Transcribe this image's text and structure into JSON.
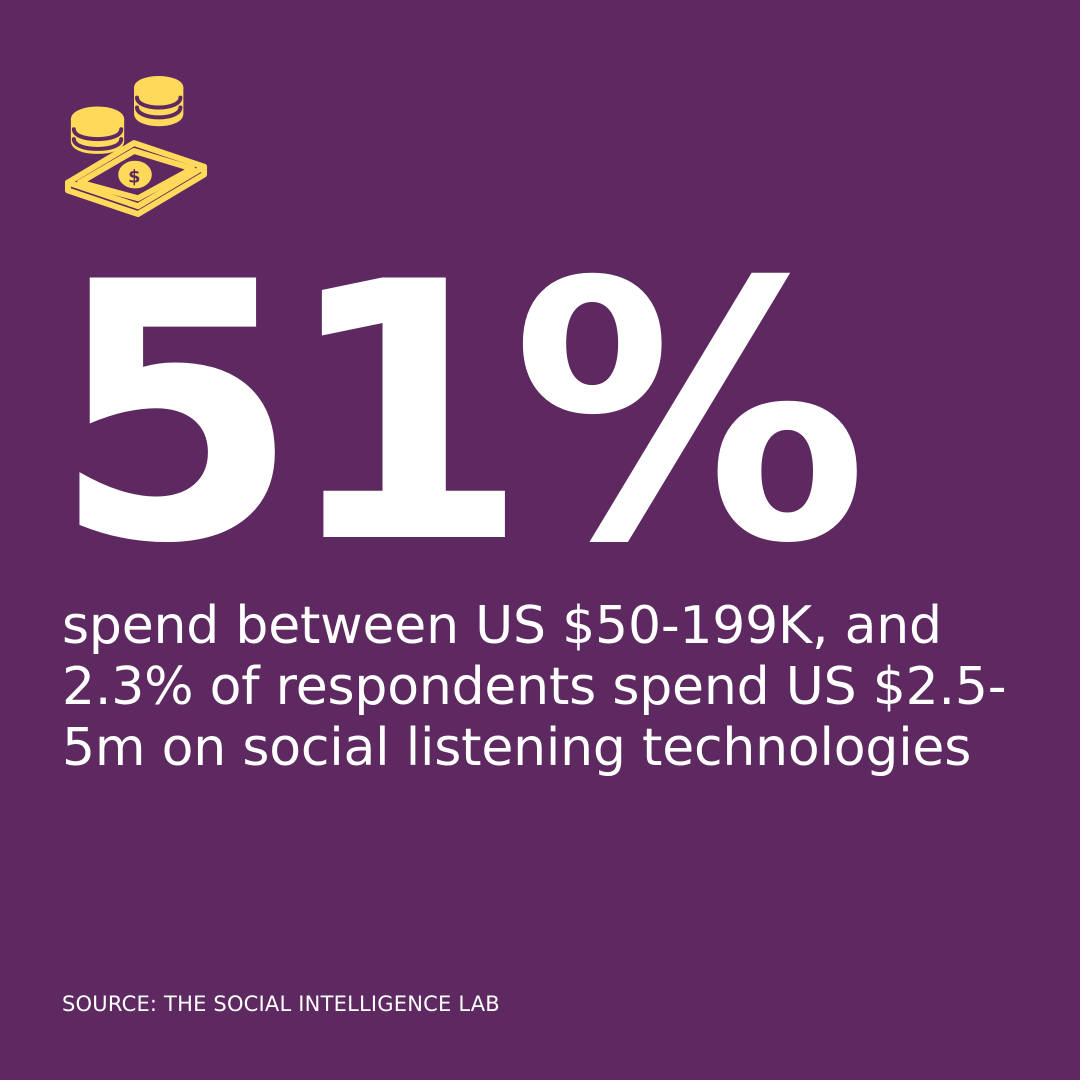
{
  "colors": {
    "background": "#5e2860",
    "accent": "#ffd95a",
    "text": "#ffffff"
  },
  "icon": {
    "name": "money-coins-icon"
  },
  "headline": {
    "value": "51%"
  },
  "description": {
    "text": "spend between US $50-199K, and 2.3% of respondents spend US $2.5-5m on social listening technologies"
  },
  "source": {
    "text": "SOURCE: THE SOCIAL INTELLIGENCE LAB"
  }
}
